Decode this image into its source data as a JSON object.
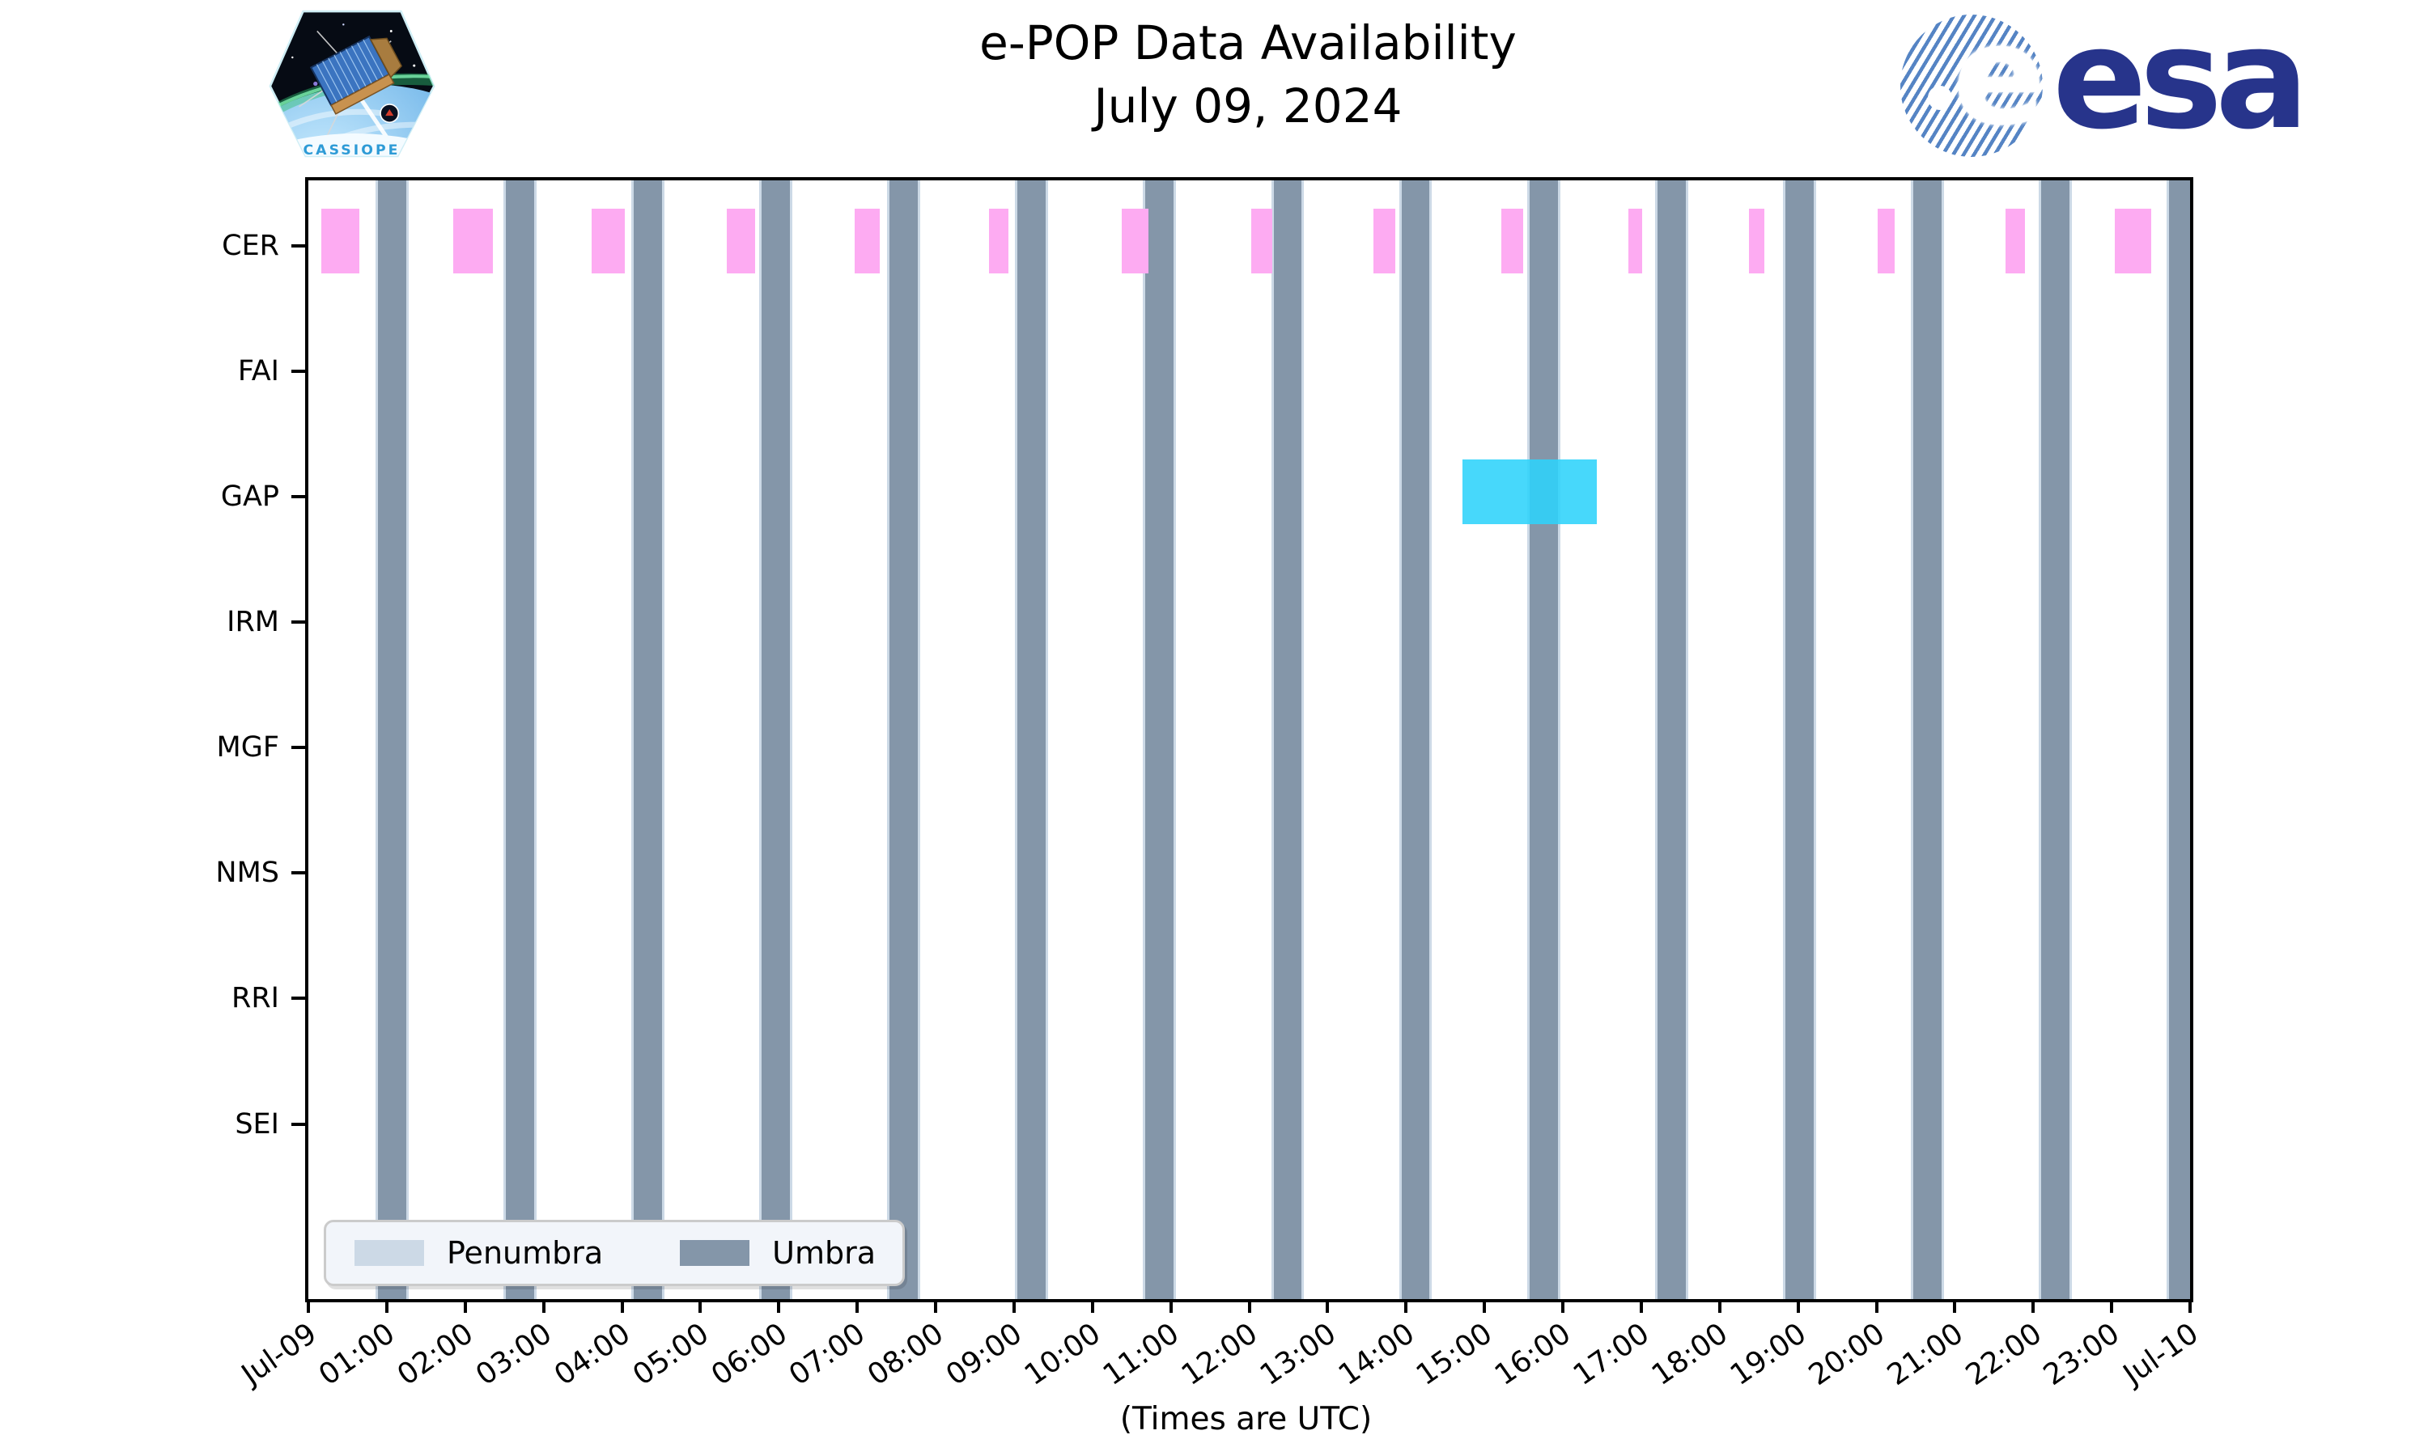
{
  "header": {
    "title_line1": "e-POP Data Availability",
    "title_line2": "July 09, 2024",
    "esa_wordmark": "esa",
    "patch_text": "CASSIOPE"
  },
  "chart_data": {
    "type": "availability-timeline (broken horizontal bars over day timeline)",
    "title": "e-POP Data Availability",
    "subtitle": "July 09, 2024",
    "xlabel": "(Times are UTC)",
    "xlim_hours": [
      0,
      24
    ],
    "x_tick_labels": [
      "Jul-09",
      "01:00",
      "02:00",
      "03:00",
      "04:00",
      "05:00",
      "06:00",
      "07:00",
      "08:00",
      "09:00",
      "10:00",
      "11:00",
      "12:00",
      "13:00",
      "14:00",
      "15:00",
      "16:00",
      "17:00",
      "18:00",
      "19:00",
      "20:00",
      "21:00",
      "22:00",
      "23:00",
      "Jul-10"
    ],
    "rows": [
      "CER",
      "FAI",
      "GAP",
      "IRM",
      "MGF",
      "NMS",
      "RRI",
      "SEI"
    ],
    "availability": [
      {
        "row": "CER",
        "color": "#fdabf2",
        "intervals_hours": [
          [
            0.16,
            0.65
          ],
          [
            1.85,
            2.35
          ],
          [
            3.61,
            4.04
          ],
          [
            5.34,
            5.7
          ],
          [
            6.97,
            7.29
          ],
          [
            8.68,
            8.93
          ],
          [
            10.37,
            10.72
          ],
          [
            12.03,
            12.29
          ],
          [
            13.58,
            13.86
          ],
          [
            15.22,
            15.49
          ],
          [
            16.84,
            17.01
          ],
          [
            18.37,
            18.57
          ],
          [
            20.01,
            20.23
          ],
          [
            21.65,
            21.9
          ],
          [
            23.04,
            23.5
          ]
        ]
      },
      {
        "row": "GAP",
        "color": "rgba(45,211,250,0.88)",
        "intervals_hours": [
          [
            14.72,
            16.43
          ]
        ]
      }
    ],
    "shading": {
      "umbra": {
        "label": "Umbra",
        "color": "#8496a9",
        "starts_hours": [
          0.888,
          2.52,
          4.151,
          5.783,
          7.415,
          9.046,
          10.678,
          12.31,
          13.941,
          15.573,
          17.205,
          18.836,
          20.468,
          22.1,
          23.732
        ],
        "duration_hours": 0.36
      },
      "penumbra": {
        "label": "Penumbra",
        "color": "#ccd9e6",
        "edge_hours": 0.031
      }
    },
    "legend": {
      "position": "lower left",
      "entries": [
        {
          "label": "Penumbra",
          "color": "#ccd9e6"
        },
        {
          "label": "Umbra",
          "color": "#8496a9"
        }
      ]
    },
    "grid": false
  }
}
